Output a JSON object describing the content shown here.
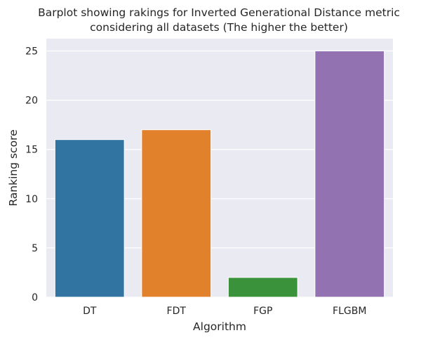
{
  "chart_data": {
    "type": "bar",
    "title_line1": "Barplot showing rakings for Inverted Generational Distance metric",
    "title_line2": "considering all datasets (The higher the better)",
    "xlabel": "Algorithm",
    "ylabel": "Ranking score",
    "categories": [
      "DT",
      "FDT",
      "FGP",
      "FLGBM"
    ],
    "values": [
      16,
      17,
      2,
      25
    ],
    "colors": [
      "#3274a1",
      "#e1812c",
      "#3a923a",
      "#9372b2"
    ],
    "ylim": [
      0,
      26.25
    ],
    "yticks": [
      0,
      5,
      10,
      15,
      20,
      25
    ],
    "grid": true,
    "background": "#eaeaf2"
  }
}
